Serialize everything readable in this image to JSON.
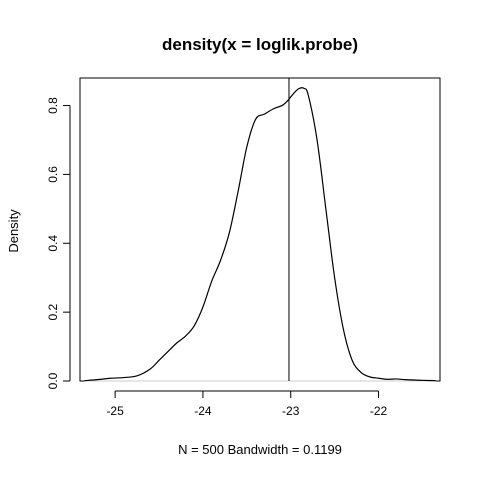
{
  "chart_data": {
    "type": "line",
    "title": "density(x = loglik.probe)",
    "xlabel": "N = 500   Bandwidth = 0.1199",
    "ylabel": "Density",
    "xlim": [
      -25.4,
      -21.3
    ],
    "ylim": [
      0,
      0.88
    ],
    "xticks": [
      -25,
      -24,
      -23,
      -22
    ],
    "xtick_labels": [
      "-25",
      "-24",
      "-23",
      "-22"
    ],
    "yticks": [
      0.0,
      0.2,
      0.4,
      0.6,
      0.8
    ],
    "ytick_labels": [
      "0.0",
      "0.2",
      "0.4",
      "0.6",
      "0.8"
    ],
    "vline": -23.02,
    "baseline": 0,
    "grid": false,
    "series": [
      {
        "x": [
          -25.35,
          -25.2,
          -25.05,
          -24.9,
          -24.75,
          -24.6,
          -24.5,
          -24.4,
          -24.3,
          -24.2,
          -24.1,
          -24.0,
          -23.9,
          -23.8,
          -23.7,
          -23.6,
          -23.5,
          -23.4,
          -23.3,
          -23.2,
          -23.1,
          -23.05,
          -23.0,
          -22.95,
          -22.9,
          -22.85,
          -22.8,
          -22.7,
          -22.6,
          -22.5,
          -22.4,
          -22.3,
          -22.2,
          -22.1,
          -22.0,
          -21.9,
          -21.8,
          -21.7,
          -21.6,
          -21.5,
          -21.35
        ],
        "y": [
          0.001,
          0.004,
          0.008,
          0.01,
          0.015,
          0.035,
          0.06,
          0.085,
          0.11,
          0.13,
          0.16,
          0.215,
          0.29,
          0.35,
          0.43,
          0.55,
          0.68,
          0.76,
          0.775,
          0.79,
          0.8,
          0.81,
          0.825,
          0.84,
          0.85,
          0.85,
          0.83,
          0.7,
          0.5,
          0.3,
          0.15,
          0.06,
          0.025,
          0.012,
          0.008,
          0.005,
          0.006,
          0.004,
          0.003,
          0.002,
          0.001
        ],
        "color": "#000000"
      }
    ]
  }
}
